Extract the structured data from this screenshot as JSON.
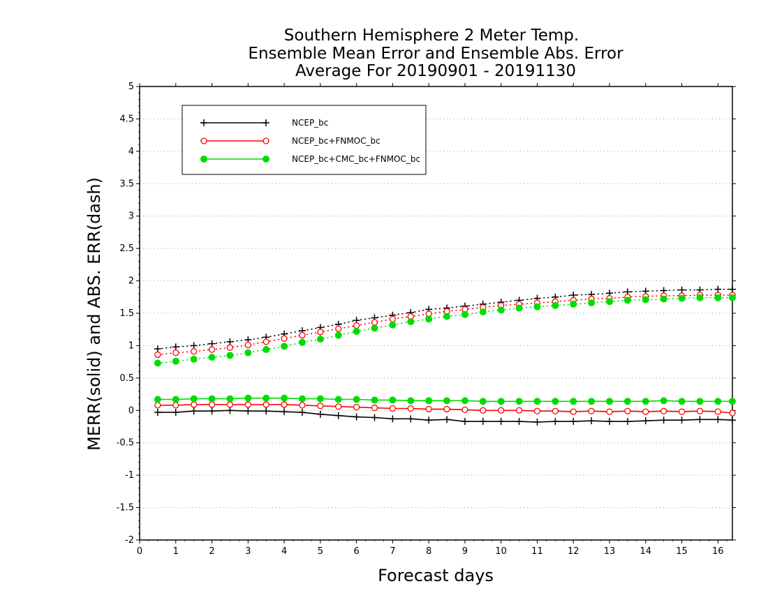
{
  "chart_data": {
    "type": "line",
    "title": [
      "Southern Hemisphere 2 Meter Temp.",
      "Ensemble Mean Error and Ensemble Abs. Error",
      "Average For 20190901 - 20191130"
    ],
    "xlabel": "Forecast days",
    "ylabel": "MERR(solid) and ABS. ERR(dash)",
    "xlim": [
      0,
      16.4
    ],
    "ylim": [
      -2,
      5
    ],
    "xticks": [
      0,
      1,
      2,
      3,
      4,
      5,
      6,
      7,
      8,
      9,
      10,
      11,
      12,
      13,
      14,
      15,
      16
    ],
    "xtick_labels": [
      "0",
      "1",
      "2",
      "3",
      "4",
      "5",
      "6",
      "7",
      "8",
      "9",
      "10",
      "11",
      "12",
      "13",
      "14",
      "15",
      "16"
    ],
    "yticks": [
      -2,
      -1.5,
      -1,
      -0.5,
      0,
      0.5,
      1,
      1.5,
      2,
      2.5,
      3,
      3.5,
      4,
      4.5,
      5
    ],
    "ytick_labels": [
      "-2",
      "-1.5",
      "-1",
      "-0.5",
      "0",
      "0.5",
      "1",
      "1.5",
      "2",
      "2.5",
      "3",
      "3.5",
      "4",
      "4.5",
      "5"
    ],
    "grid": true,
    "legend_position": "top-left",
    "x": [
      0.5,
      1,
      1.5,
      2,
      2.5,
      3,
      3.5,
      4,
      4.5,
      5,
      5.5,
      6,
      6.5,
      7,
      7.5,
      8,
      8.5,
      9,
      9.5,
      10,
      10.5,
      11,
      11.5,
      12,
      12.5,
      13,
      13.5,
      14,
      14.5,
      15,
      15.5,
      16,
      16.4
    ],
    "series": [
      {
        "name": "NCEP_bc",
        "color": "#000000",
        "marker": "plus",
        "merr": [
          -0.03,
          -0.03,
          -0.01,
          -0.01,
          0.0,
          -0.01,
          -0.01,
          -0.02,
          -0.03,
          -0.06,
          -0.08,
          -0.1,
          -0.11,
          -0.13,
          -0.13,
          -0.15,
          -0.14,
          -0.17,
          -0.17,
          -0.17,
          -0.17,
          -0.18,
          -0.17,
          -0.17,
          -0.16,
          -0.17,
          -0.17,
          -0.16,
          -0.15,
          -0.15,
          -0.14,
          -0.14,
          -0.15
        ],
        "abserr": [
          0.95,
          0.98,
          1.0,
          1.03,
          1.06,
          1.09,
          1.13,
          1.18,
          1.23,
          1.28,
          1.33,
          1.39,
          1.43,
          1.47,
          1.51,
          1.56,
          1.58,
          1.61,
          1.64,
          1.67,
          1.7,
          1.73,
          1.75,
          1.78,
          1.79,
          1.81,
          1.83,
          1.84,
          1.85,
          1.86,
          1.86,
          1.87,
          1.87
        ]
      },
      {
        "name": "NCEP_bc+FNMOC_bc",
        "color": "#ff0000",
        "marker": "open-circle",
        "merr": [
          0.08,
          0.08,
          0.09,
          0.09,
          0.09,
          0.09,
          0.09,
          0.09,
          0.08,
          0.07,
          0.06,
          0.05,
          0.04,
          0.03,
          0.03,
          0.02,
          0.02,
          0.01,
          0.0,
          0.0,
          0.0,
          -0.01,
          -0.01,
          -0.02,
          -0.01,
          -0.02,
          -0.01,
          -0.02,
          -0.01,
          -0.02,
          -0.01,
          -0.02,
          -0.04
        ]
      },
      {
        "name": "NCEP_bc+CMC_bc+FNMOC_bc",
        "color": "#00dd00",
        "marker": "filled-circle",
        "merr": [
          0.17,
          0.17,
          0.18,
          0.18,
          0.18,
          0.19,
          0.19,
          0.19,
          0.18,
          0.18,
          0.17,
          0.17,
          0.16,
          0.16,
          0.15,
          0.15,
          0.15,
          0.15,
          0.14,
          0.14,
          0.14,
          0.14,
          0.14,
          0.14,
          0.14,
          0.14,
          0.14,
          0.14,
          0.15,
          0.14,
          0.14,
          0.14,
          0.14
        ],
        "abserr": [
          0.73,
          0.76,
          0.79,
          0.82,
          0.85,
          0.89,
          0.94,
          0.99,
          1.05,
          1.1,
          1.16,
          1.22,
          1.27,
          1.32,
          1.37,
          1.41,
          1.45,
          1.48,
          1.52,
          1.55,
          1.58,
          1.6,
          1.62,
          1.64,
          1.66,
          1.68,
          1.7,
          1.71,
          1.72,
          1.73,
          1.74,
          1.74,
          1.74
        ]
      }
    ]
  },
  "red_abserr": [
    0.86,
    0.89,
    0.91,
    0.94,
    0.97,
    1.01,
    1.06,
    1.11,
    1.16,
    1.21,
    1.26,
    1.31,
    1.36,
    1.41,
    1.45,
    1.49,
    1.53,
    1.56,
    1.59,
    1.62,
    1.64,
    1.66,
    1.68,
    1.7,
    1.72,
    1.73,
    1.75,
    1.76,
    1.77,
    1.77,
    1.78,
    1.78,
    1.78
  ]
}
